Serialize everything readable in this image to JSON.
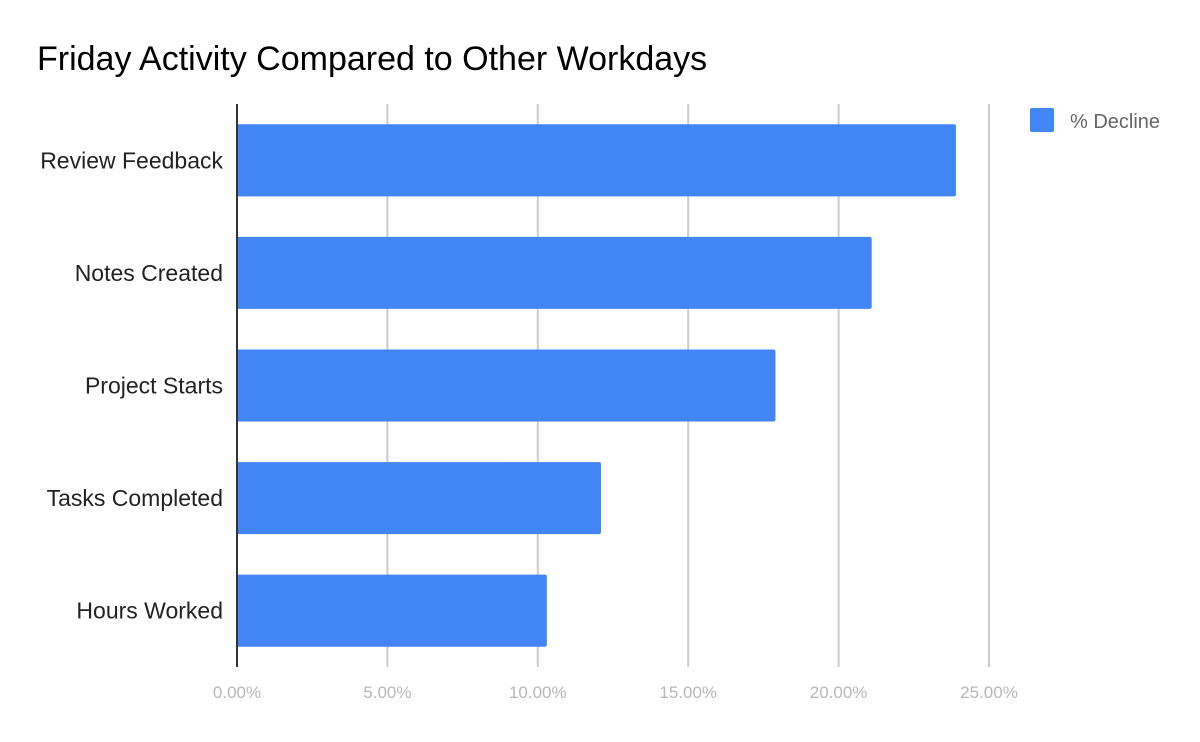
{
  "chart_data": {
    "type": "bar",
    "orientation": "horizontal",
    "title": "Friday Activity Compared to Other Workdays",
    "xlabel": "",
    "ylabel": "",
    "categories": [
      "Review Feedback",
      "Notes Created",
      "Project Starts",
      "Tasks Completed",
      "Hours Worked"
    ],
    "series": [
      {
        "name": "% Decline",
        "color": "#4285f4",
        "values": [
          23.9,
          21.1,
          17.9,
          12.1,
          10.3
        ]
      }
    ],
    "xlim": [
      0,
      25
    ],
    "xticks": [
      0,
      5,
      10,
      15,
      20,
      25
    ],
    "xtick_labels": [
      "0.00%",
      "5.00%",
      "10.00%",
      "15.00%",
      "20.00%",
      "25.00%"
    ],
    "grid": true,
    "legend_position": "top-right"
  }
}
